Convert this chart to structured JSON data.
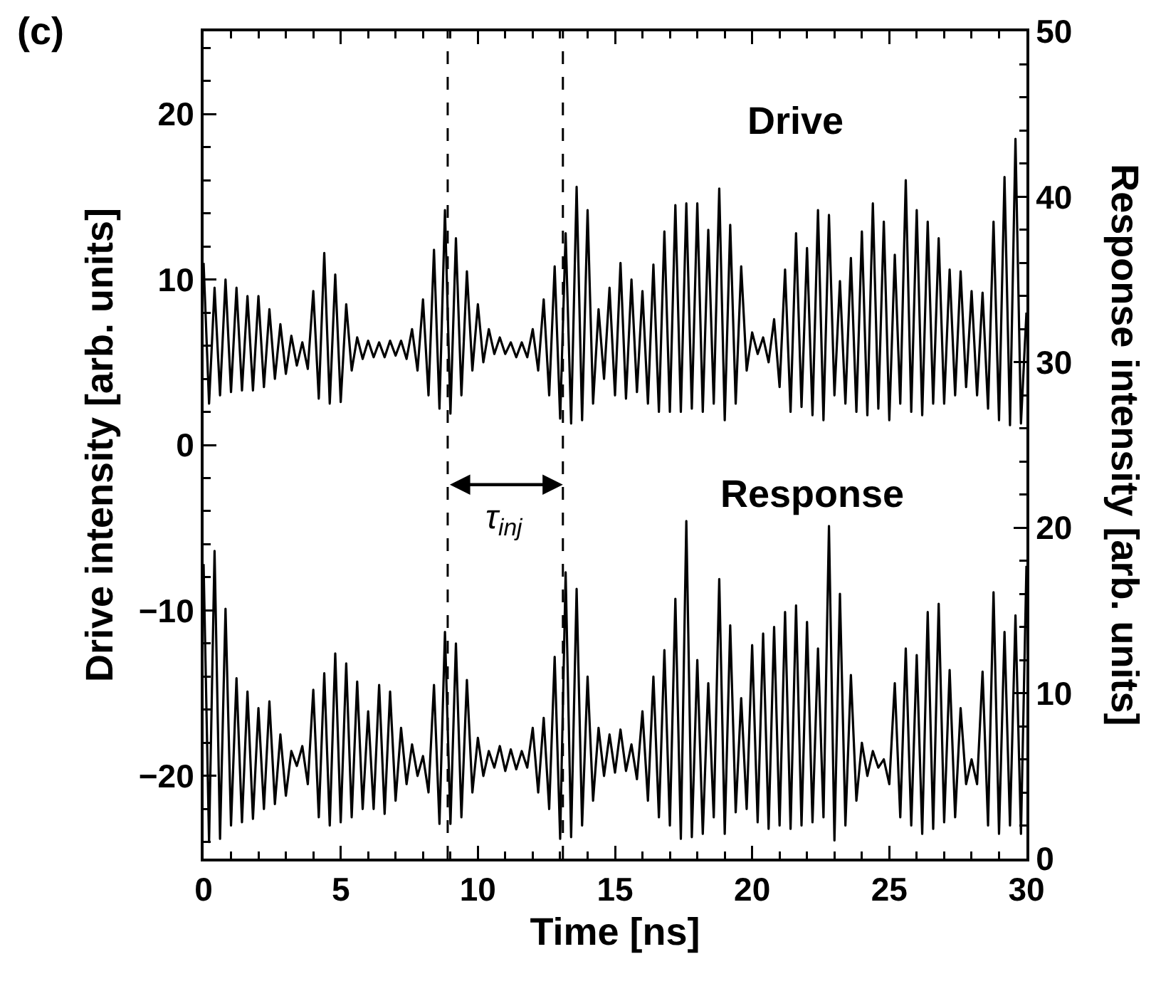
{
  "chart_data": {
    "type": "line",
    "xlabel": "Time [ns]",
    "ylabel": "Drive intensity [arb. units]",
    "y2label": "Response intensity [arb. units]",
    "annotations": [
      "(c)",
      "τ$_{inj}$"
    ],
    "x": [
      0,
      0.2,
      0.4,
      0.6,
      0.8,
      1,
      1.2,
      1.4,
      1.6,
      1.8,
      2,
      2.2,
      2.4,
      2.6,
      2.8,
      3,
      3.2,
      3.4,
      3.6,
      3.8,
      4,
      4.2,
      4.4,
      4.6,
      4.8,
      5,
      5.2,
      5.4,
      5.6,
      5.8,
      6,
      6.2,
      6.4,
      6.6,
      6.8,
      7,
      7.2,
      7.4,
      7.6,
      7.8,
      8,
      8.2,
      8.4,
      8.6,
      8.8,
      9,
      9.2,
      9.4,
      9.6,
      9.8,
      10,
      10.2,
      10.4,
      10.6,
      10.8,
      11,
      11.2,
      11.4,
      11.6,
      11.8,
      12,
      12.2,
      12.4,
      12.6,
      12.8,
      13,
      13.2,
      13.4,
      13.6,
      13.8,
      14,
      14.2,
      14.4,
      14.6,
      14.8,
      15,
      15.2,
      15.4,
      15.6,
      15.8,
      16,
      16.2,
      16.4,
      16.6,
      16.8,
      17,
      17.2,
      17.4,
      17.6,
      17.8,
      18,
      18.2,
      18.4,
      18.6,
      18.8,
      19,
      19.2,
      19.4,
      19.6,
      19.8,
      20,
      20.2,
      20.4,
      20.6,
      20.8,
      21,
      21.2,
      21.4,
      21.6,
      21.8,
      22,
      22.2,
      22.4,
      22.6,
      22.8,
      23,
      23.2,
      23.4,
      23.6,
      23.8,
      24,
      24.2,
      24.4,
      24.6,
      24.8,
      25,
      25.2,
      25.4,
      25.6,
      25.8,
      26,
      26.2,
      26.4,
      26.6,
      26.8,
      27,
      27.2,
      27.4,
      27.6,
      27.8,
      28,
      28.2,
      28.4,
      28.6,
      28.8,
      29,
      29.2,
      29.4,
      29.6,
      29.8,
      30
    ],
    "series": [
      {
        "name": "Drive",
        "color": "#000000",
        "values": [
          11,
          2.5,
          9.5,
          3,
          10,
          3.2,
          9.5,
          3.3,
          9,
          3.3,
          9,
          3.5,
          8.2,
          4,
          7.3,
          4.3,
          6.6,
          4.8,
          6.2,
          4.6,
          9.3,
          2.8,
          11.6,
          2.5,
          10.3,
          2.6,
          8.5,
          4.5,
          6.5,
          5.2,
          6.3,
          5.3,
          6.2,
          5.3,
          6.3,
          5.4,
          6.3,
          5.2,
          7,
          4.5,
          8.8,
          3,
          11.8,
          2.2,
          14.2,
          1.9,
          12.5,
          3,
          10.5,
          4.5,
          8.5,
          5,
          7,
          5.5,
          6.5,
          5.5,
          6.2,
          5.3,
          6.2,
          5.3,
          7,
          4.5,
          8.8,
          3,
          10.8,
          1.6,
          12.8,
          1.3,
          15.6,
          1.5,
          14.2,
          2.5,
          8.2,
          4,
          9.5,
          3,
          11,
          2.8,
          10,
          3.2,
          9.3,
          2.5,
          10.9,
          2,
          12.9,
          2,
          14.5,
          2,
          14.6,
          2.2,
          14.6,
          2,
          13,
          2.5,
          15.5,
          1.5,
          13.3,
          2.5,
          10.8,
          4.5,
          6.8,
          5.5,
          6.5,
          5,
          7.6,
          3.5,
          10.6,
          2,
          12.8,
          2.3,
          11.9,
          1.8,
          14.2,
          1.5,
          13.9,
          3,
          9.9,
          2.5,
          11.3,
          2,
          12.9,
          1.8,
          14.6,
          2.2,
          13.5,
          1.5,
          11.5,
          2.5,
          16,
          2,
          14.2,
          1.8,
          13.5,
          2.5,
          12.5,
          2.5,
          10.6,
          3,
          10.5,
          3.5,
          9.3,
          3,
          9.2,
          2.2,
          13.5,
          1.5,
          16.2,
          1.2,
          18.5,
          1.3,
          8
        ]
      },
      {
        "name": "Response",
        "color": "#000000",
        "axis": "y2",
        "values": [
          17.8,
          1,
          18.6,
          1.2,
          15.1,
          2,
          10.9,
          2.2,
          10.1,
          2.4,
          9.1,
          3,
          9.5,
          3.3,
          7.5,
          3.8,
          6.5,
          5.6,
          6.8,
          4.5,
          10.2,
          2.5,
          11.2,
          2,
          12.4,
          2.2,
          11.8,
          2.5,
          10.7,
          3,
          8.9,
          3,
          10.5,
          2.7,
          10.1,
          3.5,
          7.9,
          4.5,
          6.9,
          5,
          6.2,
          4,
          10.5,
          2.1,
          13.7,
          2.1,
          13,
          2.5,
          10.8,
          4,
          7.3,
          5,
          6.5,
          5.5,
          6.8,
          5.3,
          6.6,
          5.4,
          6.5,
          5.5,
          7.9,
          4,
          8.5,
          3,
          12.2,
          1.2,
          17.3,
          1.3,
          16.3,
          2,
          11,
          3.5,
          7.9,
          5,
          7.5,
          5.2,
          7.8,
          5.3,
          6.9,
          4.8,
          8.9,
          3.5,
          11,
          2.5,
          12.6,
          2,
          15.7,
          1.2,
          20.4,
          1.3,
          12,
          1.5,
          10.6,
          2.5,
          16.9,
          1.5,
          14.1,
          2.8,
          9.7,
          3,
          12.9,
          2.2,
          13.6,
          1.8,
          14,
          2,
          14.9,
          1.8,
          15.3,
          2,
          14.3,
          2.2,
          12.7,
          2.5,
          20.1,
          1.1,
          16,
          2,
          11.1,
          3.5,
          7,
          5,
          6.5,
          5.5,
          6,
          4.5,
          10.6,
          2.5,
          12.7,
          2,
          12.3,
          1.5,
          14.9,
          1.8,
          15.4,
          2.2,
          11.4,
          2.5,
          9.1,
          4.5,
          6,
          4.5,
          11.3,
          2,
          16.1,
          1.5,
          13.7,
          2,
          14.7,
          1.5,
          17.7
        ]
      }
    ],
    "xlim": [
      0,
      30
    ],
    "xticks": [
      0,
      5,
      10,
      15,
      20,
      25,
      30
    ],
    "ylim": [
      -25,
      25
    ],
    "yticks": [
      {
        "value": -20,
        "label": "−20"
      },
      {
        "value": -10,
        "label": "−10"
      },
      0,
      10,
      20
    ],
    "y2lim": [
      0,
      50
    ],
    "y2ticks": [
      0,
      10,
      20,
      30,
      40,
      50
    ],
    "ref_lines": [
      {
        "axis": "x",
        "value": 8.9,
        "line_style": "dashed"
      },
      {
        "axis": "x",
        "value": 13.1,
        "line_style": "dashed"
      }
    ],
    "grid": false,
    "legend": false
  }
}
